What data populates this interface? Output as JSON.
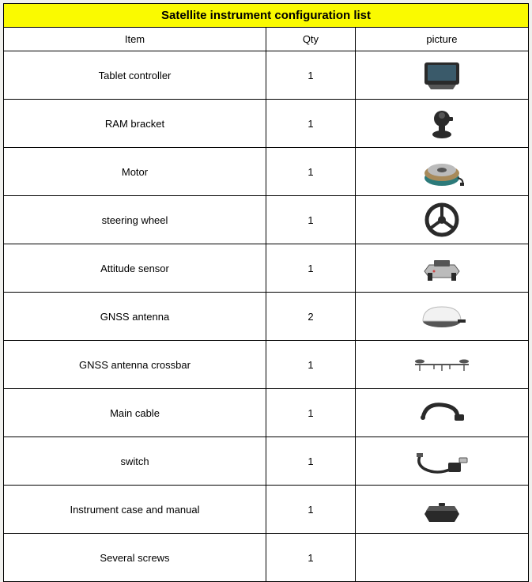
{
  "title": "Satellite instrument configuration list",
  "columns": {
    "item": "Item",
    "qty": "Qty",
    "picture": "picture"
  },
  "rows": [
    {
      "item": "Tablet controller",
      "qty": "1",
      "icon": "tablet"
    },
    {
      "item": "RAM bracket",
      "qty": "1",
      "icon": "ram-bracket"
    },
    {
      "item": "Motor",
      "qty": "1",
      "icon": "motor"
    },
    {
      "item": "steering wheel",
      "qty": "1",
      "icon": "steering-wheel"
    },
    {
      "item": "Attitude sensor",
      "qty": "1",
      "icon": "attitude-sensor"
    },
    {
      "item": "GNSS antenna",
      "qty": "2",
      "icon": "gnss-antenna"
    },
    {
      "item": "GNSS antenna crossbar",
      "qty": "1",
      "icon": "crossbar"
    },
    {
      "item": "Main cable",
      "qty": "1",
      "icon": "main-cable"
    },
    {
      "item": "switch",
      "qty": "1",
      "icon": "switch"
    },
    {
      "item": "Instrument case and manual",
      "qty": "1",
      "icon": "case"
    },
    {
      "item": "Several screws",
      "qty": "1",
      "icon": ""
    }
  ],
  "colors": {
    "header_bg": "#fafa00",
    "border": "#000000",
    "dark": "#2a2a2a",
    "mid": "#555555",
    "light": "#bbbbbb",
    "teal": "#2c7a7a",
    "white": "#f2f2f2"
  }
}
